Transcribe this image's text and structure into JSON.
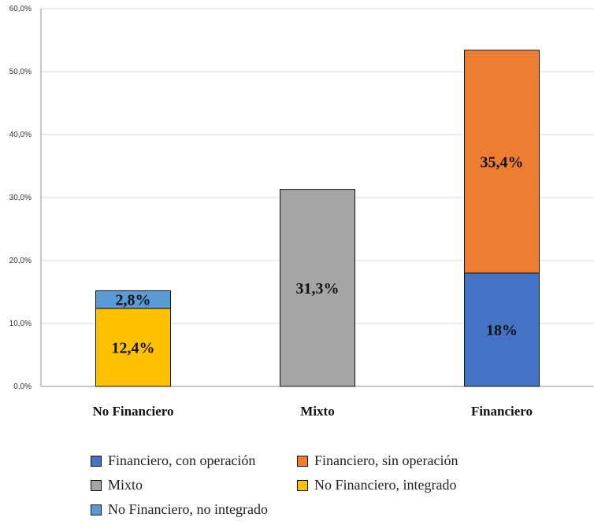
{
  "chart_data": {
    "type": "bar",
    "stacked": true,
    "categories": [
      "No Financiero",
      "Mixto",
      "Financiero"
    ],
    "ylim": [
      0,
      60
    ],
    "y_ticks": [
      "0,0%",
      "10,0%",
      "20,0%",
      "30,0%",
      "40,0%",
      "50,0%",
      "60,0%"
    ],
    "grid": true,
    "legend_position": "bottom",
    "series": [
      {
        "name": "Financiero, con operación",
        "color": "#4472C4",
        "values": [
          0,
          0,
          18.0
        ],
        "labels": [
          "",
          "",
          "18%"
        ]
      },
      {
        "name": "Financiero, sin operación",
        "color": "#ED7D31",
        "values": [
          0,
          0,
          35.4
        ],
        "labels": [
          "",
          "",
          "35,4%"
        ]
      },
      {
        "name": "Mixto",
        "color": "#A5A5A5",
        "values": [
          0,
          31.3,
          0
        ],
        "labels": [
          "",
          "31,3%",
          ""
        ]
      },
      {
        "name": "No Financiero, integrado",
        "color": "#FFC000",
        "values": [
          12.4,
          0,
          0
        ],
        "labels": [
          "12,4%",
          "",
          ""
        ]
      },
      {
        "name": "No Financiero, no integrado",
        "color": "#5B9BD5",
        "values": [
          2.8,
          0,
          0
        ],
        "labels": [
          "2,8%",
          "",
          ""
        ]
      }
    ]
  }
}
